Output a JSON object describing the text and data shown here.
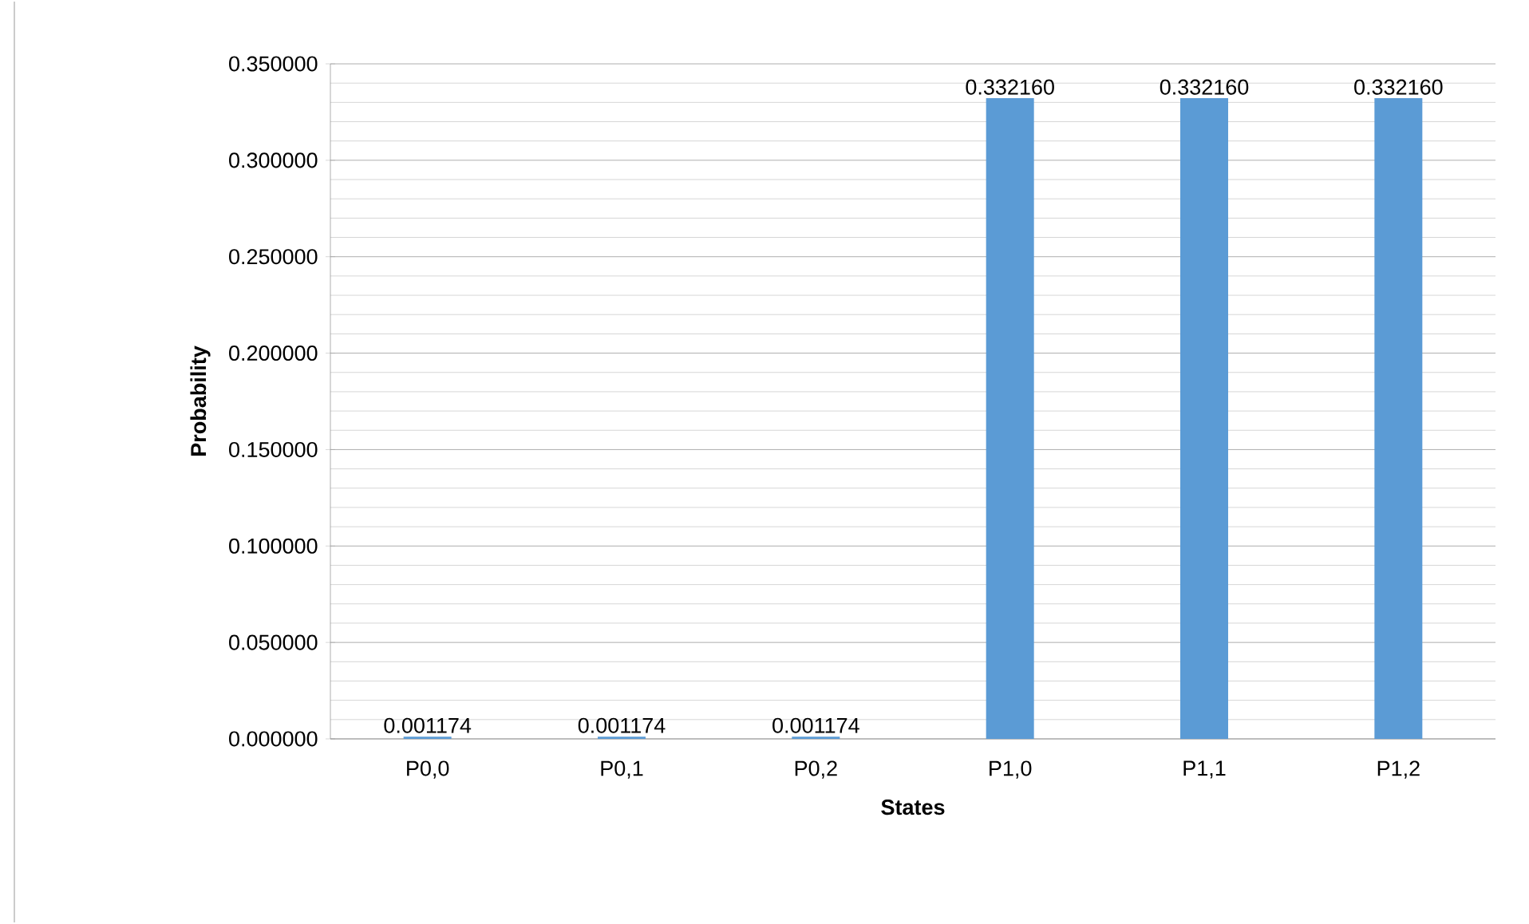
{
  "chart_data": {
    "type": "bar",
    "xlabel": "States",
    "ylabel": "Probability",
    "categories": [
      "P0,0",
      "P0,1",
      "P0,2",
      "P1,0",
      "P1,1",
      "P1,2"
    ],
    "values": [
      0.001174,
      0.001174,
      0.001174,
      0.33216,
      0.33216,
      0.33216
    ],
    "value_labels": [
      "0.001174",
      "0.001174",
      "0.001174",
      "0.332160",
      "0.332160",
      "0.332160"
    ],
    "color": "#5b9bd5",
    "ylim": [
      0,
      0.35
    ],
    "yticks": [
      {
        "value": 0,
        "label": "0.000000"
      },
      {
        "value": 0.05,
        "label": "0.050000"
      },
      {
        "value": 0.1,
        "label": "0.100000"
      },
      {
        "value": 0.15,
        "label": "0.150000"
      },
      {
        "value": 0.2,
        "label": "0.200000"
      },
      {
        "value": 0.25,
        "label": "0.250000"
      },
      {
        "value": 0.3,
        "label": "0.300000"
      },
      {
        "value": 0.35,
        "label": "0.350000"
      }
    ],
    "grid": "y"
  }
}
